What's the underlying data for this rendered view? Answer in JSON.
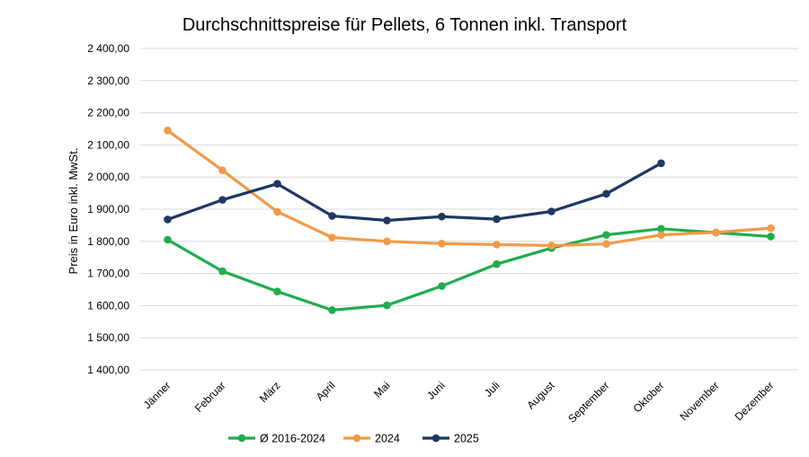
{
  "chart_data": {
    "type": "line",
    "title": "Durchschnittspreise für Pellets, 6 Tonnen inkl. Transport",
    "xlabel": "",
    "ylabel": "Preis in Euro inkl. MwSt.",
    "ylim": [
      1400,
      2400
    ],
    "yticks": [
      1400,
      1500,
      1600,
      1700,
      1800,
      1900,
      2000,
      2100,
      2200,
      2300,
      2400
    ],
    "ytick_labels": [
      "1 400,00",
      "1 500,00",
      "1 600,00",
      "1 700,00",
      "1 800,00",
      "1 900,00",
      "2 000,00",
      "2 100,00",
      "2 200,00",
      "2 300,00",
      "2 400,00"
    ],
    "grid": true,
    "legend_position": "bottom",
    "categories": [
      "Jänner",
      "Februar",
      "März",
      "April",
      "Mai",
      "Juni",
      "Juli",
      "August",
      "September",
      "Oktober",
      "November",
      "Dezember"
    ],
    "series": [
      {
        "name": "Ø 2016-2024",
        "color": "#1fad4f",
        "values": [
          1805,
          1707,
          1644,
          1586,
          1601,
          1661,
          1729,
          1779,
          1820,
          1839,
          1827,
          1815
        ]
      },
      {
        "name": "2024",
        "color": "#f29a48",
        "values": [
          2145,
          2021,
          1892,
          1812,
          1800,
          1793,
          1790,
          1787,
          1792,
          1820,
          1828,
          1841
        ]
      },
      {
        "name": "2025",
        "color": "#1f3864",
        "values": [
          1868,
          1929,
          1979,
          1879,
          1865,
          1877,
          1869,
          1893,
          1948,
          2043,
          null,
          null
        ]
      }
    ]
  }
}
